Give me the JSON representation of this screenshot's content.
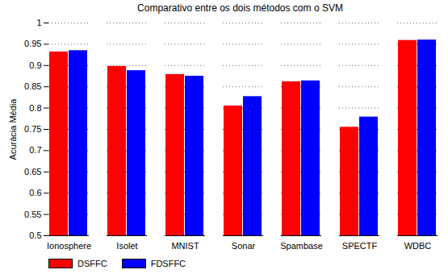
{
  "chart_data": {
    "type": "bar",
    "title": "Comparativo entre os dois métodos com o SVM",
    "y_label": "Acurácia Média",
    "categories": [
      "Ionosphere",
      "Isolet",
      "MNIST",
      "Sonar",
      "Spambase",
      "SPECTF",
      "WDBC"
    ],
    "series": [
      {
        "name": "DSFFC",
        "color": "#ff0000",
        "values": [
          0.932,
          0.898,
          0.879,
          0.805,
          0.862,
          0.755,
          0.959
        ]
      },
      {
        "name": "FDSFFC",
        "color": "#0000ff",
        "values": [
          0.935,
          0.888,
          0.875,
          0.827,
          0.864,
          0.779,
          0.96
        ]
      }
    ],
    "ylim": [
      0.5,
      1
    ],
    "yticks": [
      0.5,
      0.55,
      0.6,
      0.65,
      0.7,
      0.75,
      0.8,
      0.85,
      0.9,
      0.95,
      1
    ],
    "grid": true,
    "legend": "lower left"
  }
}
